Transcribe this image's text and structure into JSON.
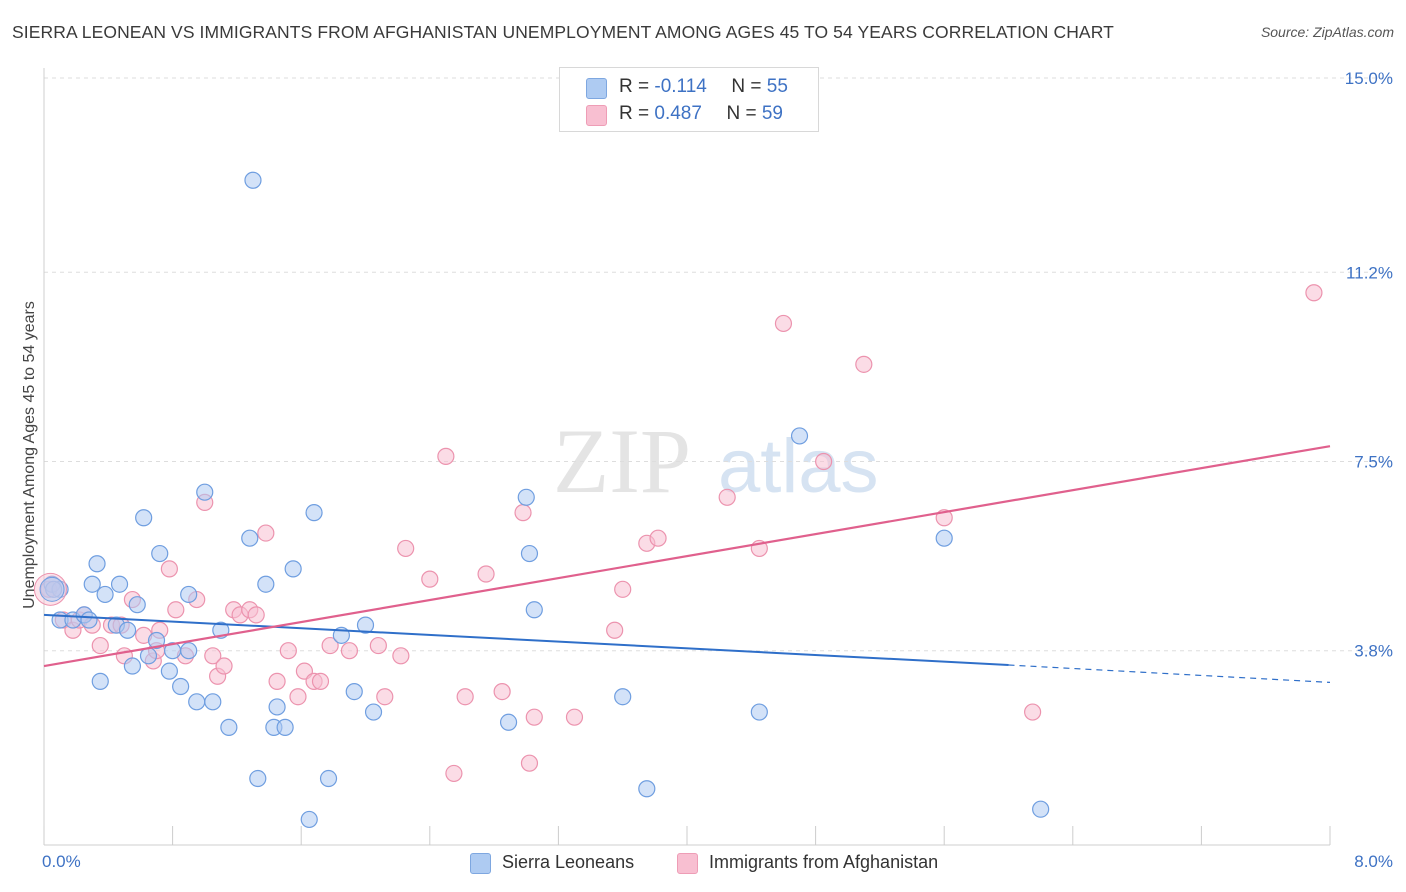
{
  "title": "SIERRA LEONEAN VS IMMIGRANTS FROM AFGHANISTAN UNEMPLOYMENT AMONG AGES 45 TO 54 YEARS CORRELATION CHART",
  "source": "Source: ZipAtlas.com",
  "watermark": {
    "zip": "ZIP",
    "atlas": "atlas"
  },
  "legend_top": [
    {
      "r_label": "R = ",
      "r_value": "-0.114",
      "n_label": "N = ",
      "n_value": "55",
      "color": "#aecbf2"
    },
    {
      "r_label": "R = ",
      "r_value": "0.487",
      "n_label": "N = ",
      "n_value": "59",
      "color": "#f8bfd1"
    }
  ],
  "legend_bottom": [
    {
      "label": "Sierra Leoneans",
      "color": "#aecbf2"
    },
    {
      "label": "Immigrants from Afghanistan",
      "color": "#f8bfd1"
    }
  ],
  "chart_data": {
    "type": "scatter",
    "title": "SIERRA LEONEAN VS IMMIGRANTS FROM AFGHANISTAN UNEMPLOYMENT AMONG AGES 45 TO 54 YEARS CORRELATION CHART",
    "xlabel": "",
    "ylabel": "Unemployment Among Ages 45 to 54 years",
    "xlim": [
      0,
      8.0
    ],
    "ylim": [
      0,
      15.0
    ],
    "x_tick_labels": [
      "0.0%",
      "8.0%"
    ],
    "y_ticks": [
      {
        "value": 3.8,
        "label": "3.8%"
      },
      {
        "value": 7.5,
        "label": "7.5%"
      },
      {
        "value": 11.2,
        "label": "11.2%"
      },
      {
        "value": 15.0,
        "label": "15.0%"
      }
    ],
    "grid": "horizontal dashed",
    "legend_position": "top-center",
    "series": [
      {
        "name": "Sierra Leoneans",
        "color": "#aecbf2",
        "stroke": "#6f9ee0",
        "line_color": "#2f6fc9",
        "r": -0.114,
        "n": 55,
        "trend": {
          "x0": 0.0,
          "y0": 4.5,
          "x1": 6.0,
          "y1": 3.52,
          "dash_to_x": 8.0,
          "dash_to_y": 3.18
        },
        "points": [
          [
            0.05,
            5.1
          ],
          [
            0.1,
            5.0
          ],
          [
            0.1,
            4.4
          ],
          [
            0.18,
            4.4
          ],
          [
            0.25,
            4.5
          ],
          [
            0.28,
            4.4
          ],
          [
            0.3,
            5.1
          ],
          [
            0.33,
            5.5
          ],
          [
            0.35,
            3.2
          ],
          [
            0.38,
            4.9
          ],
          [
            0.45,
            4.3
          ],
          [
            0.47,
            5.1
          ],
          [
            0.52,
            4.2
          ],
          [
            0.55,
            3.5
          ],
          [
            0.58,
            4.7
          ],
          [
            0.62,
            6.4
          ],
          [
            0.65,
            3.7
          ],
          [
            0.7,
            4.0
          ],
          [
            0.72,
            5.7
          ],
          [
            0.78,
            3.4
          ],
          [
            0.8,
            3.8
          ],
          [
            0.85,
            3.1
          ],
          [
            0.9,
            3.8
          ],
          [
            0.9,
            4.9
          ],
          [
            0.95,
            2.8
          ],
          [
            1.0,
            6.9
          ],
          [
            1.05,
            2.8
          ],
          [
            1.1,
            4.2
          ],
          [
            1.15,
            2.3
          ],
          [
            1.28,
            6.0
          ],
          [
            1.3,
            13.0
          ],
          [
            1.33,
            1.3
          ],
          [
            1.38,
            5.1
          ],
          [
            1.43,
            2.3
          ],
          [
            1.45,
            2.7
          ],
          [
            1.5,
            2.3
          ],
          [
            1.55,
            5.4
          ],
          [
            1.65,
            0.5
          ],
          [
            1.68,
            6.5
          ],
          [
            1.77,
            1.3
          ],
          [
            1.85,
            4.1
          ],
          [
            1.93,
            3.0
          ],
          [
            2.0,
            4.3
          ],
          [
            2.05,
            2.6
          ],
          [
            2.89,
            2.4
          ],
          [
            3.0,
            6.8
          ],
          [
            3.02,
            5.7
          ],
          [
            3.05,
            4.6
          ],
          [
            3.6,
            2.9
          ],
          [
            3.75,
            1.1
          ],
          [
            4.45,
            2.6
          ],
          [
            4.7,
            8.0
          ],
          [
            5.6,
            6.0
          ],
          [
            6.2,
            0.7
          ],
          [
            0.06,
            5.0
          ]
        ]
      },
      {
        "name": "Immigrants from Afghanistan",
        "color": "#f8bfd1",
        "stroke": "#ec93ae",
        "line_color": "#e0608d",
        "r": 0.487,
        "n": 59,
        "trend": {
          "x0": 0.0,
          "y0": 3.5,
          "x1": 8.0,
          "y1": 7.8
        },
        "points": [
          [
            0.03,
            5.0
          ],
          [
            0.12,
            4.4
          ],
          [
            0.18,
            4.2
          ],
          [
            0.22,
            4.4
          ],
          [
            0.25,
            4.5
          ],
          [
            0.3,
            4.3
          ],
          [
            0.35,
            3.9
          ],
          [
            0.42,
            4.3
          ],
          [
            0.48,
            4.3
          ],
          [
            0.5,
            3.7
          ],
          [
            0.55,
            4.8
          ],
          [
            0.62,
            4.1
          ],
          [
            0.68,
            3.6
          ],
          [
            0.7,
            3.8
          ],
          [
            0.72,
            4.2
          ],
          [
            0.78,
            5.4
          ],
          [
            0.82,
            4.6
          ],
          [
            0.88,
            3.7
          ],
          [
            0.95,
            4.8
          ],
          [
            1.0,
            6.7
          ],
          [
            1.05,
            3.7
          ],
          [
            1.08,
            3.3
          ],
          [
            1.12,
            3.5
          ],
          [
            1.18,
            4.6
          ],
          [
            1.22,
            4.5
          ],
          [
            1.28,
            4.6
          ],
          [
            1.32,
            4.5
          ],
          [
            1.38,
            6.1
          ],
          [
            1.45,
            3.2
          ],
          [
            1.52,
            3.8
          ],
          [
            1.58,
            2.9
          ],
          [
            1.62,
            3.4
          ],
          [
            1.68,
            3.2
          ],
          [
            1.72,
            3.2
          ],
          [
            1.78,
            3.9
          ],
          [
            1.9,
            3.8
          ],
          [
            2.08,
            3.9
          ],
          [
            2.12,
            2.9
          ],
          [
            2.22,
            3.7
          ],
          [
            2.25,
            5.8
          ],
          [
            2.4,
            5.2
          ],
          [
            2.5,
            7.6
          ],
          [
            2.55,
            1.4
          ],
          [
            2.62,
            2.9
          ],
          [
            2.75,
            5.3
          ],
          [
            2.85,
            3.0
          ],
          [
            2.98,
            6.5
          ],
          [
            3.02,
            1.6
          ],
          [
            3.05,
            2.5
          ],
          [
            3.3,
            2.5
          ],
          [
            3.55,
            4.2
          ],
          [
            3.6,
            5.0
          ],
          [
            3.75,
            5.9
          ],
          [
            3.82,
            6.0
          ],
          [
            4.25,
            6.8
          ],
          [
            4.45,
            5.8
          ],
          [
            4.6,
            10.2
          ],
          [
            4.85,
            7.5
          ],
          [
            5.1,
            9.4
          ]
        ],
        "extra_points": [
          [
            6.15,
            2.6
          ],
          [
            7.9,
            10.8
          ],
          [
            5.6,
            6.4
          ]
        ]
      }
    ]
  }
}
